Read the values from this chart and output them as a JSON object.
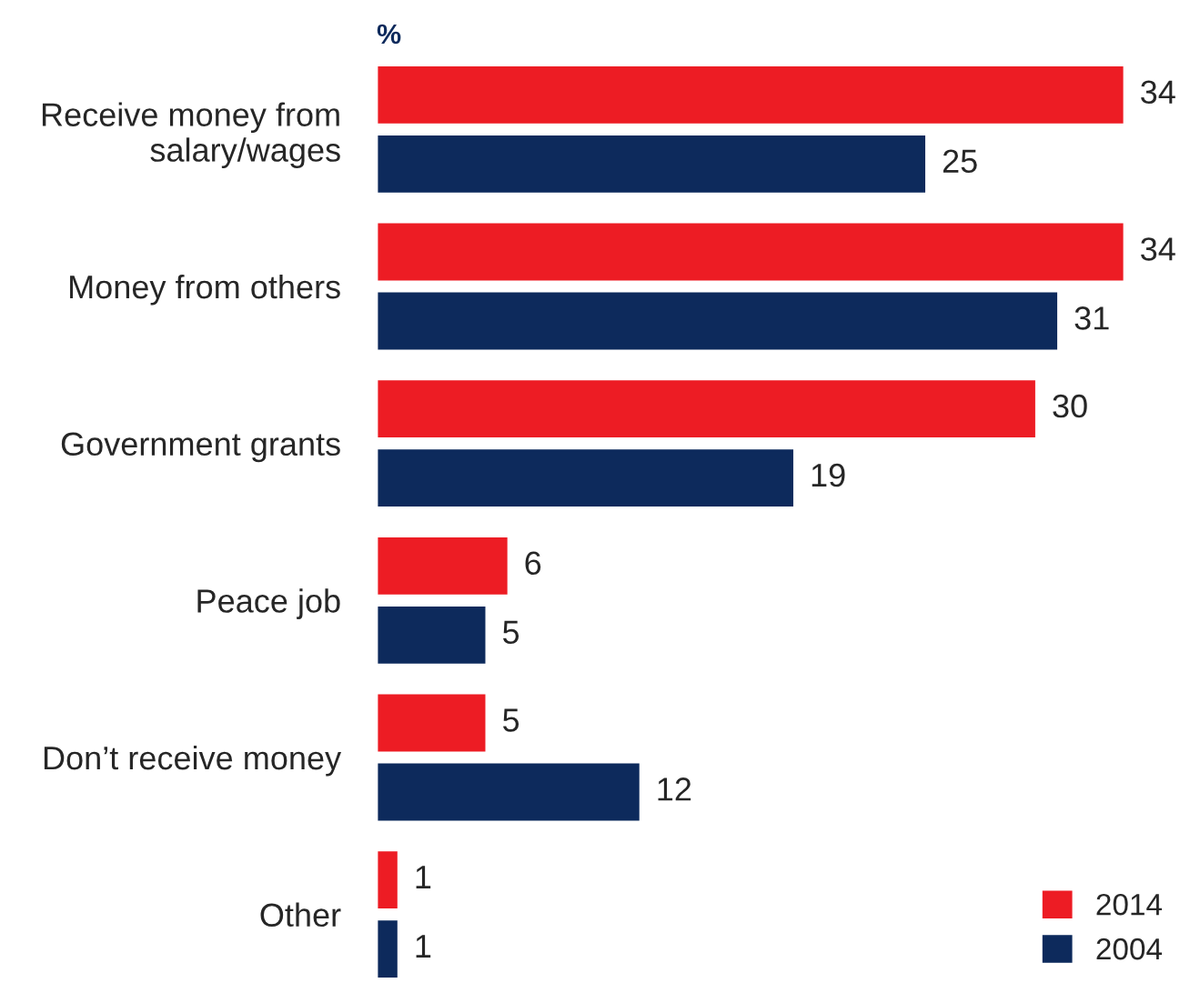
{
  "chart_data": {
    "type": "bar",
    "orientation": "horizontal",
    "categories": [
      "Receive money from\nsalary/wages",
      "Money from others",
      "Government grants",
      "Peace job",
      "Don’t receive money",
      "Other"
    ],
    "series": [
      {
        "name": "2014",
        "color": "#ed1c24",
        "values": [
          34,
          34,
          30,
          6,
          5,
          1
        ]
      },
      {
        "name": "2004",
        "color": "#0d2a5c",
        "values": [
          25,
          31,
          19,
          5,
          12,
          1
        ]
      }
    ],
    "data_labels": true,
    "legend": "bottom right",
    "grid": false,
    "annotations": [
      "%"
    ]
  }
}
